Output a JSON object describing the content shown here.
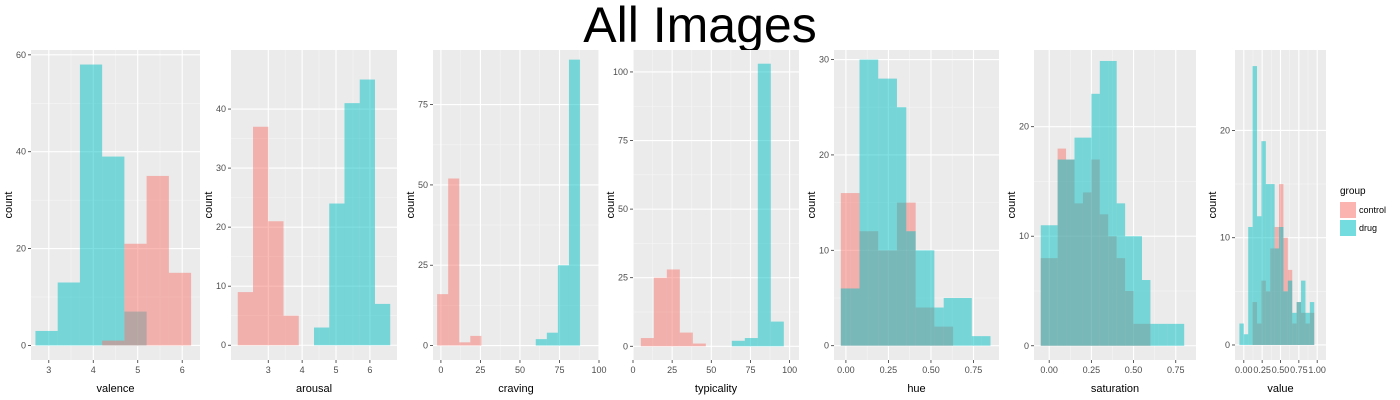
{
  "title": "All Images",
  "colors": {
    "control": "#F8766D",
    "drug": "#00BFC4",
    "panel": "#EBEBEB",
    "grid": "#FFFFFF"
  },
  "legend": {
    "title": "group",
    "items": [
      {
        "label": "control",
        "color": "#F8766D"
      },
      {
        "label": "drug",
        "color": "#00BFC4"
      }
    ]
  },
  "chart_data": [
    {
      "type": "bar",
      "xlabel": "valence",
      "ylabel": "count",
      "xlim": [
        2.6,
        6.4
      ],
      "ylim": [
        -3,
        61
      ],
      "xticks": [
        3,
        4,
        5,
        6
      ],
      "xtick_labels": [
        "3",
        "4",
        "5",
        "6"
      ],
      "yticks": [
        0,
        20,
        40,
        60
      ],
      "ytick_labels": [
        "0",
        "20",
        "40",
        "60"
      ],
      "series": [
        {
          "name": "drug",
          "bins": [
            [
              2.7,
              3.2,
              3
            ],
            [
              3.2,
              3.7,
              13
            ],
            [
              3.7,
              4.2,
              58
            ],
            [
              4.2,
              4.7,
              39
            ],
            [
              4.7,
              5.2,
              7
            ]
          ]
        },
        {
          "name": "control",
          "bins": [
            [
              4.2,
              4.7,
              1
            ],
            [
              4.7,
              5.2,
              21
            ],
            [
              5.2,
              5.7,
              35
            ],
            [
              5.7,
              6.2,
              15
            ]
          ]
        }
      ]
    },
    {
      "type": "bar",
      "xlabel": "arousal",
      "ylabel": "count",
      "xlim": [
        1.9,
        6.8
      ],
      "ylim": [
        -2.5,
        50
      ],
      "xticks": [
        3,
        4,
        5,
        6
      ],
      "xtick_labels": [
        "3",
        "4",
        "5",
        "6"
      ],
      "yticks": [
        0,
        10,
        20,
        30,
        40
      ],
      "ytick_labels": [
        "0",
        "10",
        "20",
        "30",
        "40"
      ],
      "series": [
        {
          "name": "control",
          "bins": [
            [
              2.1,
              2.55,
              9
            ],
            [
              2.55,
              3.0,
              37
            ],
            [
              3.0,
              3.45,
              21
            ],
            [
              3.45,
              3.9,
              5
            ]
          ]
        },
        {
          "name": "drug",
          "bins": [
            [
              4.35,
              4.8,
              3
            ],
            [
              4.8,
              5.25,
              24
            ],
            [
              5.25,
              5.7,
              41
            ],
            [
              5.7,
              6.15,
              45
            ],
            [
              6.15,
              6.6,
              7
            ]
          ]
        }
      ]
    },
    {
      "type": "bar",
      "xlabel": "craving",
      "ylabel": "count",
      "xlim": [
        -5,
        100
      ],
      "ylim": [
        -4.5,
        92
      ],
      "xticks": [
        0,
        25,
        50,
        75,
        100
      ],
      "xtick_labels": [
        "0",
        "25",
        "50",
        "75",
        "100"
      ],
      "yticks": [
        0,
        25,
        50,
        75
      ],
      "ytick_labels": [
        "0",
        "25",
        "50",
        "75"
      ],
      "series": [
        {
          "name": "control",
          "bins": [
            [
              -2.4,
              4.6,
              16
            ],
            [
              4.6,
              11.6,
              52
            ],
            [
              11.6,
              18.6,
              1
            ],
            [
              18.6,
              25.6,
              3
            ]
          ]
        },
        {
          "name": "drug",
          "bins": [
            [
              60,
              67,
              2
            ],
            [
              67,
              74,
              4
            ],
            [
              74,
              81,
              25
            ],
            [
              81,
              88,
              89
            ]
          ]
        }
      ]
    },
    {
      "type": "bar",
      "xlabel": "typicality",
      "ylabel": "count",
      "xlim": [
        0,
        106
      ],
      "ylim": [
        -5,
        108
      ],
      "xticks": [
        0,
        25,
        50,
        75,
        100
      ],
      "xtick_labels": [
        "0",
        "25",
        "50",
        "75",
        "100"
      ],
      "yticks": [
        0,
        25,
        50,
        75,
        100
      ],
      "ytick_labels": [
        "0",
        "25",
        "50",
        "75",
        "100"
      ],
      "series": [
        {
          "name": "control",
          "bins": [
            [
              5,
              13.3,
              3
            ],
            [
              13.3,
              21.6,
              25
            ],
            [
              21.6,
              29.9,
              28
            ],
            [
              29.9,
              38.2,
              5
            ],
            [
              38.2,
              46.5,
              1
            ]
          ]
        },
        {
          "name": "drug",
          "bins": [
            [
              63.1,
              71.4,
              2
            ],
            [
              71.4,
              79.7,
              3
            ],
            [
              79.7,
              88,
              103
            ],
            [
              88,
              96.3,
              9
            ]
          ]
        }
      ]
    },
    {
      "type": "bar",
      "xlabel": "hue",
      "ylabel": "count",
      "xlim": [
        -0.07,
        0.9
      ],
      "ylim": [
        -1.5,
        31
      ],
      "xticks": [
        0,
        0.25,
        0.5,
        0.75
      ],
      "xtick_labels": [
        "0.00",
        "0.25",
        "0.50",
        "0.75"
      ],
      "yticks": [
        0,
        10,
        20,
        30
      ],
      "ytick_labels": [
        "0",
        "10",
        "20",
        "30"
      ],
      "series": [
        {
          "name": "control",
          "bins": [
            [
              -0.03,
              0.025,
              16
            ],
            [
              0.025,
              0.08,
              16
            ],
            [
              0.08,
              0.135,
              12
            ],
            [
              0.135,
              0.19,
              12
            ],
            [
              0.19,
              0.245,
              10
            ],
            [
              0.245,
              0.3,
              10
            ],
            [
              0.3,
              0.355,
              15
            ],
            [
              0.355,
              0.41,
              15
            ],
            [
              0.41,
              0.465,
              4
            ],
            [
              0.465,
              0.52,
              4
            ],
            [
              0.52,
              0.575,
              2
            ],
            [
              0.575,
              0.63,
              2
            ]
          ]
        },
        {
          "name": "drug",
          "bins": [
            [
              -0.03,
              0.025,
              6
            ],
            [
              0.025,
              0.08,
              6
            ],
            [
              0.08,
              0.135,
              30
            ],
            [
              0.135,
              0.19,
              30
            ],
            [
              0.19,
              0.245,
              28
            ],
            [
              0.245,
              0.3,
              28
            ],
            [
              0.3,
              0.355,
              25
            ],
            [
              0.355,
              0.41,
              12
            ],
            [
              0.41,
              0.465,
              10
            ],
            [
              0.465,
              0.52,
              10
            ],
            [
              0.52,
              0.575,
              4
            ],
            [
              0.575,
              0.63,
              5
            ],
            [
              0.63,
              0.685,
              5
            ],
            [
              0.685,
              0.74,
              5
            ],
            [
              0.74,
              0.795,
              1
            ],
            [
              0.795,
              0.85,
              1
            ]
          ]
        }
      ]
    },
    {
      "type": "bar",
      "xlabel": "saturation",
      "ylabel": "count",
      "xlim": [
        -0.09,
        0.87
      ],
      "ylim": [
        -1.3,
        27
      ],
      "xticks": [
        0,
        0.25,
        0.5,
        0.75
      ],
      "xtick_labels": [
        "0.00",
        "0.25",
        "0.50",
        "0.75"
      ],
      "yticks": [
        0,
        10,
        20
      ],
      "ytick_labels": [
        "0",
        "10",
        "20"
      ],
      "series": [
        {
          "name": "control",
          "bins": [
            [
              -0.05,
              0.0,
              8
            ],
            [
              0.0,
              0.05,
              8
            ],
            [
              0.05,
              0.1,
              18
            ],
            [
              0.1,
              0.15,
              17
            ],
            [
              0.15,
              0.2,
              13
            ],
            [
              0.2,
              0.25,
              14
            ],
            [
              0.25,
              0.3,
              17
            ],
            [
              0.3,
              0.35,
              12
            ],
            [
              0.35,
              0.4,
              10
            ],
            [
              0.4,
              0.45,
              8
            ],
            [
              0.45,
              0.5,
              5
            ],
            [
              0.5,
              0.55,
              2
            ],
            [
              0.55,
              0.6,
              2
            ]
          ]
        },
        {
          "name": "drug",
          "bins": [
            [
              -0.05,
              0.0,
              11
            ],
            [
              0.0,
              0.05,
              11
            ],
            [
              0.05,
              0.1,
              17
            ],
            [
              0.1,
              0.15,
              17
            ],
            [
              0.15,
              0.2,
              19
            ],
            [
              0.2,
              0.25,
              19
            ],
            [
              0.25,
              0.3,
              23
            ],
            [
              0.3,
              0.35,
              26
            ],
            [
              0.35,
              0.4,
              26
            ],
            [
              0.4,
              0.45,
              13
            ],
            [
              0.45,
              0.5,
              10
            ],
            [
              0.5,
              0.55,
              10
            ],
            [
              0.55,
              0.6,
              6
            ],
            [
              0.6,
              0.65,
              2
            ],
            [
              0.65,
              0.7,
              2
            ],
            [
              0.7,
              0.75,
              2
            ],
            [
              0.75,
              0.8,
              2
            ]
          ]
        }
      ]
    },
    {
      "type": "bar",
      "xlabel": "value",
      "ylabel": "count",
      "xlim": [
        -0.12,
        1.12
      ],
      "ylim": [
        -1.4,
        27.5
      ],
      "xticks": [
        0,
        0.25,
        0.5,
        0.75,
        1.0
      ],
      "xtick_labels": [
        "0.00",
        "0.25",
        "0.50",
        "0.75",
        "1.00"
      ],
      "yticks": [
        0,
        10,
        20
      ],
      "ytick_labels": [
        "0",
        "10",
        "20"
      ],
      "series": [
        {
          "name": "control",
          "bins": [
            [
              0.12,
              0.18,
              4
            ],
            [
              0.18,
              0.24,
              2
            ],
            [
              0.24,
              0.3,
              6
            ],
            [
              0.3,
              0.36,
              5
            ],
            [
              0.36,
              0.42,
              9
            ],
            [
              0.42,
              0.48,
              11
            ],
            [
              0.48,
              0.54,
              15
            ],
            [
              0.54,
              0.6,
              10
            ],
            [
              0.6,
              0.66,
              7
            ],
            [
              0.66,
              0.72,
              2
            ],
            [
              0.72,
              0.78,
              4
            ],
            [
              0.78,
              0.84,
              3
            ],
            [
              0.84,
              0.9,
              2
            ],
            [
              0.9,
              0.96,
              3
            ]
          ]
        },
        {
          "name": "drug",
          "bins": [
            [
              -0.06,
              0.0,
              2
            ],
            [
              0.0,
              0.06,
              1
            ],
            [
              0.06,
              0.12,
              11
            ],
            [
              0.12,
              0.18,
              26
            ],
            [
              0.18,
              0.24,
              12
            ],
            [
              0.24,
              0.3,
              19
            ],
            [
              0.3,
              0.36,
              15
            ],
            [
              0.36,
              0.42,
              15
            ],
            [
              0.42,
              0.48,
              9
            ],
            [
              0.48,
              0.54,
              11
            ],
            [
              0.54,
              0.6,
              5
            ],
            [
              0.6,
              0.66,
              6
            ],
            [
              0.66,
              0.72,
              3
            ],
            [
              0.72,
              0.78,
              4
            ],
            [
              0.78,
              0.84,
              6
            ],
            [
              0.84,
              0.9,
              3
            ],
            [
              0.9,
              0.96,
              4
            ]
          ]
        }
      ]
    }
  ]
}
